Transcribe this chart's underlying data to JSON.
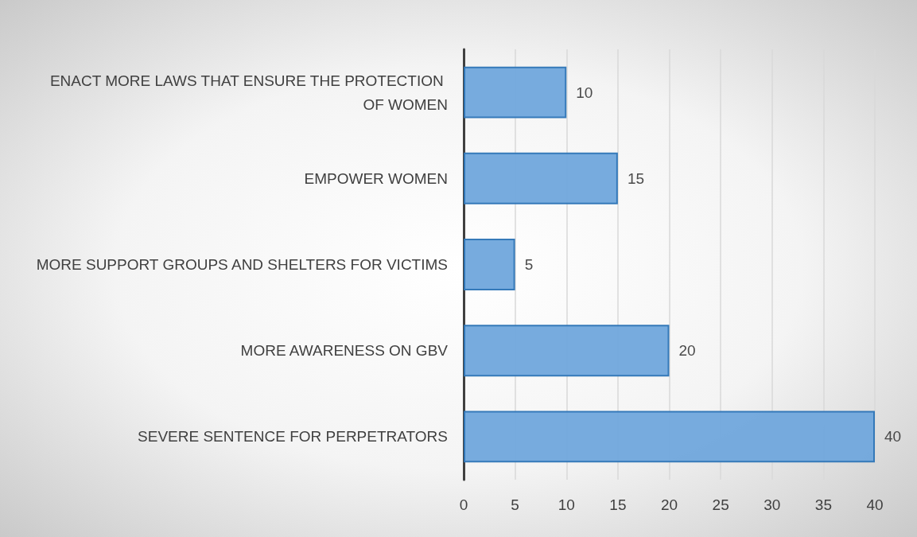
{
  "chart_data": {
    "type": "bar",
    "orientation": "horizontal",
    "categories": [
      "ENACT MORE LAWS THAT ENSURE THE PROTECTION OF WOMEN",
      "EMPOWER WOMEN",
      "MORE SUPPORT GROUPS AND SHELTERS FOR VICTIMS",
      "MORE AWARENESS ON GBV",
      "SEVERE SENTENCE FOR PERPETRATORS"
    ],
    "values": [
      10,
      15,
      5,
      20,
      40
    ],
    "color": "#70a7dc",
    "xlim": [
      0,
      40
    ],
    "xticks": [
      0,
      5,
      10,
      15,
      20,
      25,
      30,
      35,
      40
    ],
    "grid": "x",
    "data_labels": true
  }
}
